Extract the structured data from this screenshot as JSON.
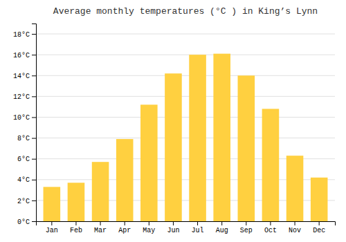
{
  "chart_data": {
    "type": "bar",
    "title": "Average monthly temperatures (°C ) in King’s Lynn",
    "categories": [
      "Jan",
      "Feb",
      "Mar",
      "Apr",
      "May",
      "Jun",
      "Jul",
      "Aug",
      "Sep",
      "Oct",
      "Nov",
      "Dec"
    ],
    "values": [
      3.3,
      3.7,
      5.7,
      7.9,
      11.2,
      14.2,
      16.0,
      16.1,
      14.0,
      10.8,
      6.3,
      4.2
    ],
    "color": "#FFD040",
    "ylim": [
      0,
      19
    ],
    "yticks": [
      {
        "value": 0,
        "label": "0°C"
      },
      {
        "value": 2,
        "label": "2°C"
      },
      {
        "value": 4,
        "label": "4°C"
      },
      {
        "value": 6,
        "label": "6°C"
      },
      {
        "value": 8,
        "label": "8°C"
      },
      {
        "value": 10,
        "label": "10°C"
      },
      {
        "value": 12,
        "label": "12°C"
      },
      {
        "value": 14,
        "label": "14°C"
      },
      {
        "value": 16,
        "label": "16°C"
      },
      {
        "value": 18,
        "label": "18°C"
      }
    ],
    "grid": true
  }
}
